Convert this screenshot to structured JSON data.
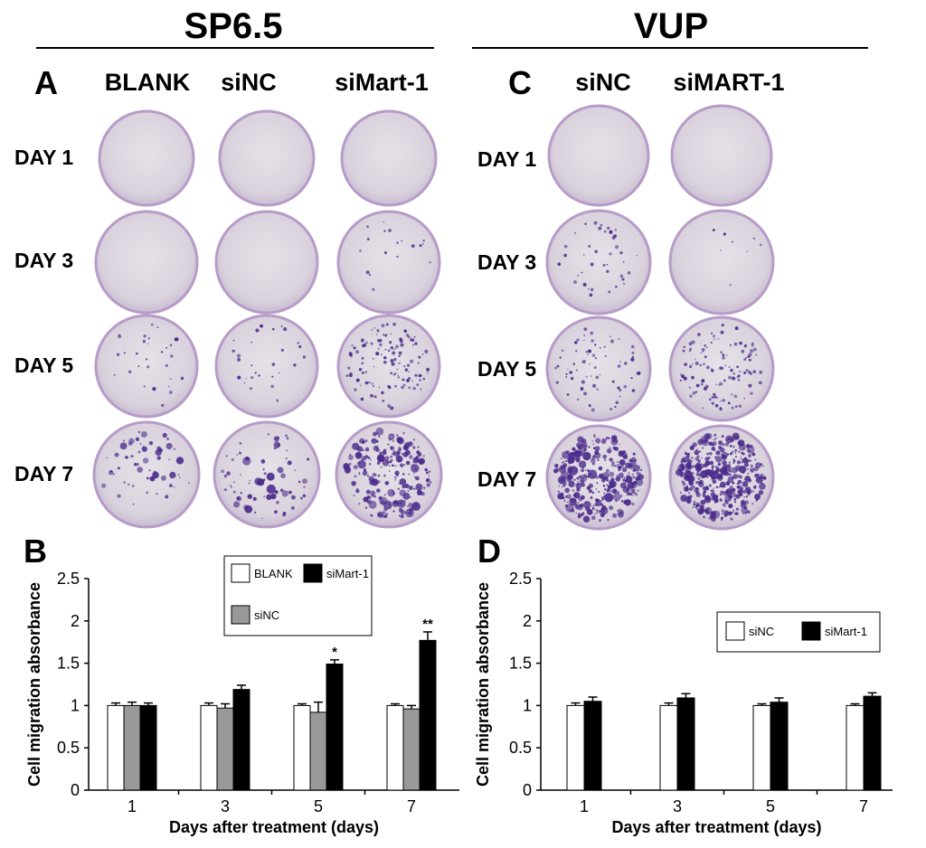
{
  "headers": {
    "left": "SP6.5",
    "right": "VUP"
  },
  "panels": {
    "a": "A",
    "b": "B",
    "c": "C",
    "d": "D"
  },
  "panel_a": {
    "columns": [
      "BLANK",
      "siNC",
      "siMart-1"
    ],
    "rows": [
      "DAY 1",
      "DAY 3",
      "DAY 5",
      "DAY 7"
    ]
  },
  "panel_c": {
    "columns": [
      "siNC",
      "siMART-1"
    ],
    "rows": [
      "DAY 1",
      "DAY 3",
      "DAY 5",
      "DAY 7"
    ]
  },
  "colors": {
    "blank": "#ffffff",
    "sinc_gray": "#999999",
    "simart": "#000000",
    "dish": "#dcd6df",
    "dish_rim": "#b79bc8",
    "colony": "#4a2a8a"
  },
  "chart_data": [
    {
      "type": "bar",
      "panel": "B",
      "categories": [
        "1",
        "3",
        "5",
        "7"
      ],
      "series": [
        {
          "name": "BLANK",
          "values": [
            1.0,
            1.0,
            1.0,
            1.0
          ],
          "errors": [
            0.03,
            0.03,
            0.02,
            0.02
          ]
        },
        {
          "name": "siNC",
          "values": [
            1.0,
            0.97,
            0.92,
            0.96
          ],
          "errors": [
            0.04,
            0.05,
            0.12,
            0.04
          ]
        },
        {
          "name": "siMart-1",
          "values": [
            1.0,
            1.19,
            1.49,
            1.77
          ],
          "errors": [
            0.03,
            0.05,
            0.05,
            0.1
          ]
        }
      ],
      "significance": [
        "",
        "",
        "*",
        "**"
      ],
      "legend": [
        "BLANK",
        "siMart-1",
        "siNC"
      ],
      "xlabel": "Days after treatment (days)",
      "ylabel": "Cell migration absorbance",
      "ylim": [
        0,
        2.5
      ],
      "yticks": [
        "0",
        "0.5",
        "1",
        "1.5",
        "2",
        "2.5"
      ]
    },
    {
      "type": "bar",
      "panel": "D",
      "categories": [
        "1",
        "3",
        "5",
        "7"
      ],
      "series": [
        {
          "name": "siNC",
          "values": [
            1.0,
            1.0,
            1.0,
            1.0
          ],
          "errors": [
            0.03,
            0.03,
            0.02,
            0.02
          ]
        },
        {
          "name": "siMart-1",
          "values": [
            1.05,
            1.09,
            1.04,
            1.11
          ],
          "errors": [
            0.05,
            0.05,
            0.05,
            0.04
          ]
        }
      ],
      "significance": [
        "",
        "",
        "",
        ""
      ],
      "legend": [
        "siNC",
        "siMart-1"
      ],
      "xlabel": "Days after treatment (days)",
      "ylabel": "Cell migration absorbance",
      "ylim": [
        0,
        2.5
      ],
      "yticks": [
        "0",
        "0.5",
        "1",
        "1.5",
        "2",
        "2.5"
      ]
    }
  ]
}
